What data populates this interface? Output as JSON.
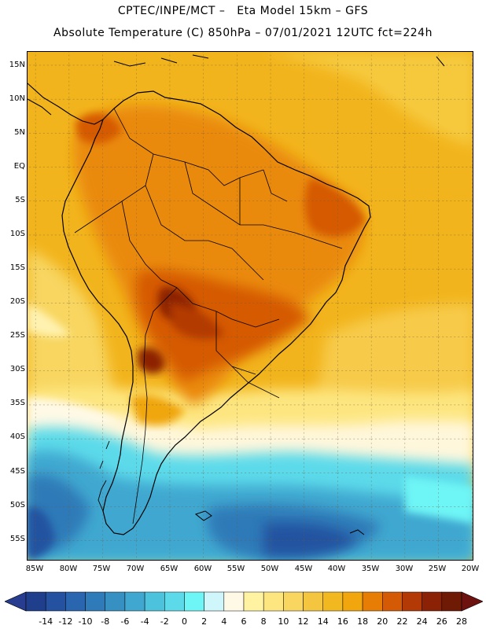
{
  "header": {
    "line1": "CPTEC/INPE/MCT –   Eta Model 15km – GFS",
    "line2": "Absolute Temperature (C) 850hPa – 07/01/2021 12UTC fct=224h"
  },
  "map": {
    "region": "South America",
    "lat_labels": [
      "15N",
      "10N",
      "5N",
      "EQ",
      "5S",
      "10S",
      "15S",
      "20S",
      "25S",
      "30S",
      "35S",
      "40S",
      "45S",
      "50S",
      "55S"
    ],
    "lon_labels": [
      "85W",
      "80W",
      "75W",
      "70W",
      "65W",
      "60W",
      "55W",
      "50W",
      "45W",
      "40W",
      "35W",
      "30W",
      "25W",
      "20W"
    ]
  },
  "colorbar": {
    "unit": "C",
    "labels": [
      "-14",
      "-12",
      "-10",
      "-8",
      "-6",
      "-4",
      "-2",
      "0",
      "2",
      "4",
      "6",
      "8",
      "10",
      "12",
      "14",
      "16",
      "18",
      "20",
      "22",
      "24",
      "26",
      "28"
    ],
    "colors": [
      "#1f3e8c",
      "#2452a0",
      "#2a66b0",
      "#2f7ab8",
      "#3690c2",
      "#40a8d0",
      "#4cc2dd",
      "#5cdaea",
      "#6ef5f5",
      "#cff6fb",
      "#fff9e6",
      "#fff2a0",
      "#fde680",
      "#f8d660",
      "#f4c640",
      "#f1b820",
      "#f0a60c",
      "#e87d06",
      "#d55a05",
      "#b33a06",
      "#8c2205",
      "#6e1a05"
    ],
    "under_color": "#283d8f",
    "over_color": "#6e1210"
  }
}
